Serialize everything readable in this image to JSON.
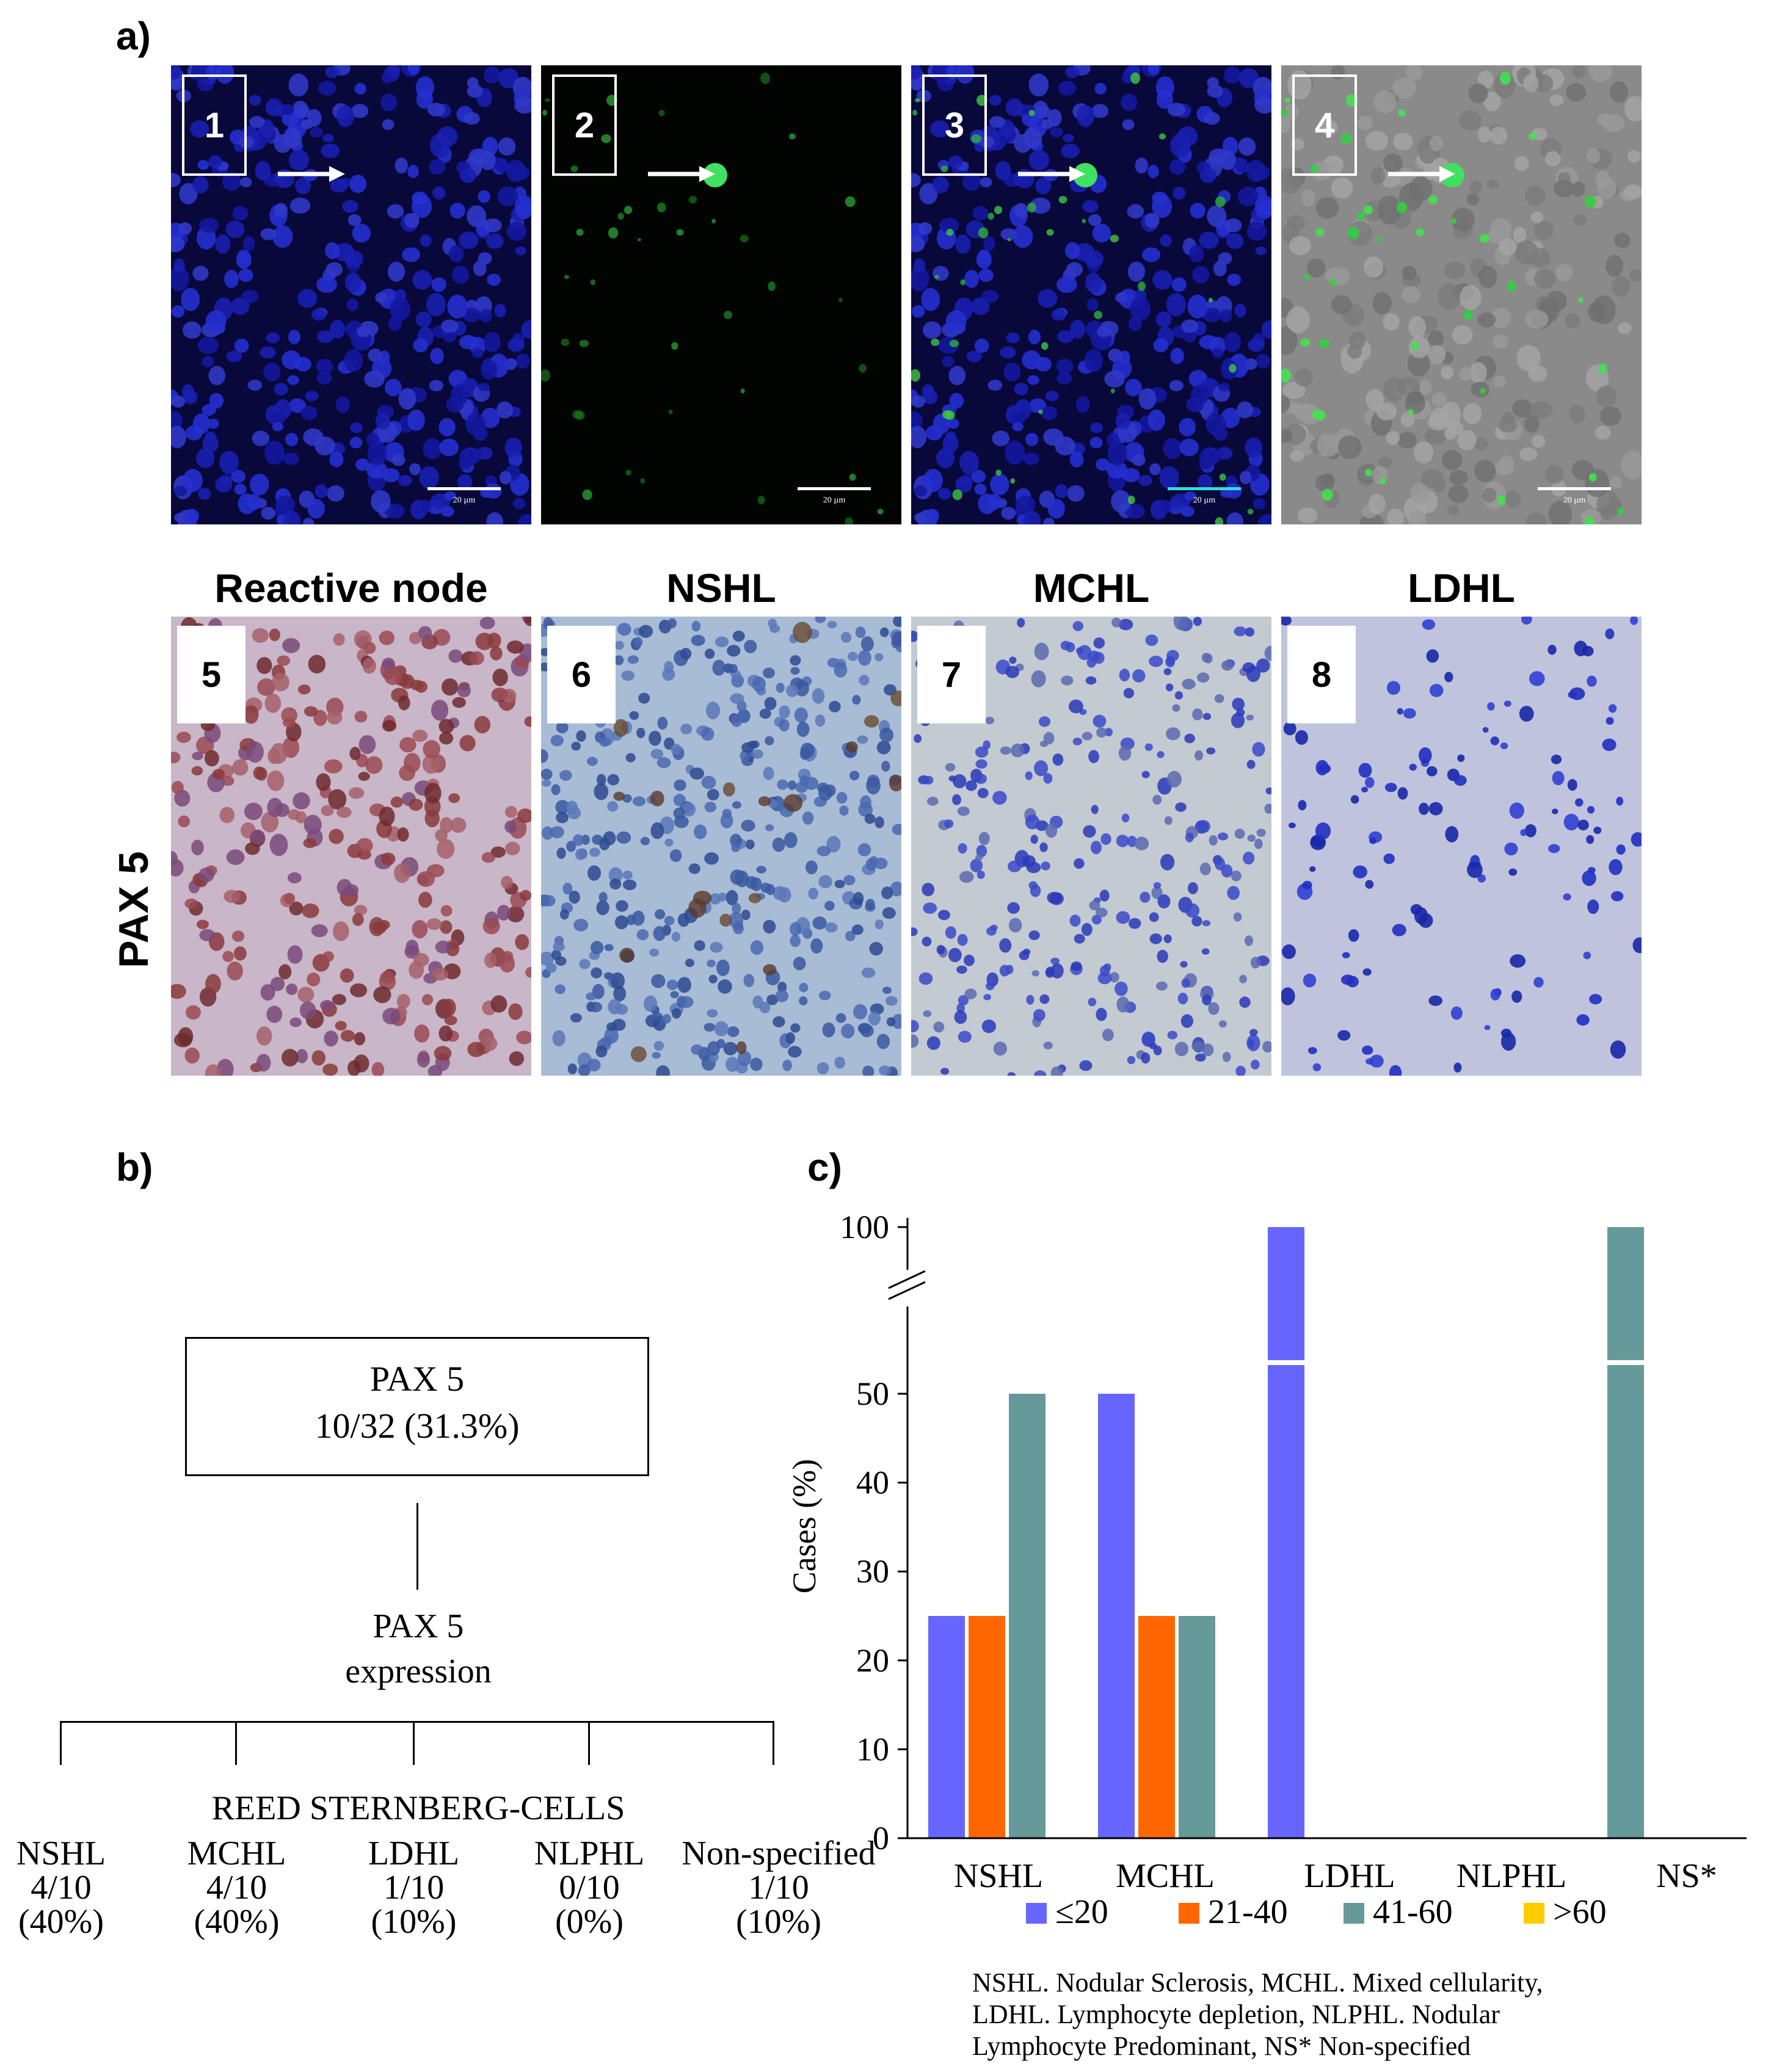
{
  "panel_a": {
    "label": "a)",
    "fluorescence_panels": [
      {
        "number": "1",
        "scale": "20 µm"
      },
      {
        "number": "2",
        "scale": "20 µm"
      },
      {
        "number": "3",
        "scale": "20 µm"
      },
      {
        "number": "4",
        "scale": "20 µm"
      }
    ],
    "ihc_panels": [
      {
        "number": "5",
        "title": "Reactive node"
      },
      {
        "number": "6",
        "title": "NSHL"
      },
      {
        "number": "7",
        "title": "MCHL"
      },
      {
        "number": "8",
        "title": "LDHL"
      }
    ],
    "row_label": "PAX 5"
  },
  "panel_b": {
    "label": "b)",
    "root": {
      "line1": "PAX 5",
      "line2": "10/32 (31.3%)"
    },
    "middle": {
      "line1": "PAX 5",
      "line2": "expression"
    },
    "group_label": "REED STERNBERG-CELLS",
    "leaves": [
      {
        "name": "NSHL",
        "count": "4/10",
        "pct": "(40%)"
      },
      {
        "name": "MCHL",
        "count": "4/10",
        "pct": "(40%)"
      },
      {
        "name": "LDHL",
        "count": "1/10",
        "pct": "(10%)"
      },
      {
        "name": "NLPHL",
        "count": "0/10",
        "pct": "(0%)"
      },
      {
        "name": "Non-specified",
        "count": "1/10",
        "pct": "(10%)"
      }
    ]
  },
  "panel_c": {
    "label": "c)",
    "footnote": [
      "NSHL. Nodular Sclerosis, MCHL. Mixed cellularity,",
      "LDHL. Lymphocyte depletion, NLPHL. Nodular",
      "Lymphocyte Predominant, NS* Non-specified"
    ]
  },
  "chart_data": {
    "type": "bar",
    "title": "",
    "xlabel": "",
    "ylabel": "Cases (%)",
    "categories": [
      "NSHL",
      "MCHL",
      "LDHL",
      "NLPHL",
      "NS*"
    ],
    "series": [
      {
        "name": "≤20",
        "color": "#6666ff",
        "values": [
          25,
          50,
          100,
          0,
          0
        ]
      },
      {
        "name": "21-40",
        "color": "#ff6600",
        "values": [
          25,
          25,
          0,
          0,
          0
        ]
      },
      {
        "name": "41-60",
        "color": "#669999",
        "values": [
          50,
          25,
          0,
          0,
          100
        ]
      },
      {
        "name": ">60",
        "color": "#ffcc00",
        "values": [
          0,
          0,
          0,
          0,
          0
        ]
      }
    ],
    "yticks": [
      "0",
      "10",
      "20",
      "30",
      "40",
      "50",
      "100"
    ],
    "axis_break": "between 50 and 100",
    "ylim": [
      0,
      100
    ],
    "grid": false,
    "legend_position": "bottom"
  }
}
